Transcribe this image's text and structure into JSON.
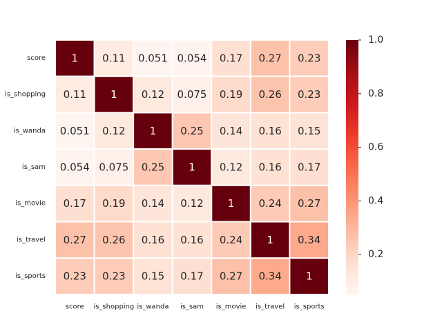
{
  "chart_data": {
    "type": "heatmap",
    "rows": [
      "score",
      "is_shopping",
      "is_wanda",
      "is_sam",
      "is_movie",
      "is_travel",
      "is_sports"
    ],
    "columns": [
      "score",
      "is_shopping",
      "is_wanda",
      "is_sam",
      "is_movie",
      "is_travel",
      "is_sports"
    ],
    "values": [
      [
        1,
        0.11,
        0.051,
        0.054,
        0.17,
        0.27,
        0.23
      ],
      [
        0.11,
        1,
        0.12,
        0.075,
        0.19,
        0.26,
        0.23
      ],
      [
        0.051,
        0.12,
        1,
        0.25,
        0.14,
        0.16,
        0.15
      ],
      [
        0.054,
        0.075,
        0.25,
        1,
        0.12,
        0.16,
        0.17
      ],
      [
        0.17,
        0.19,
        0.14,
        0.12,
        1,
        0.24,
        0.27
      ],
      [
        0.27,
        0.26,
        0.16,
        0.16,
        0.24,
        1,
        0.34
      ],
      [
        0.23,
        0.23,
        0.15,
        0.17,
        0.27,
        0.34,
        1
      ]
    ],
    "annotations": [
      [
        "1",
        "0.11",
        "0.051",
        "0.054",
        "0.17",
        "0.27",
        "0.23"
      ],
      [
        "0.11",
        "1",
        "0.12",
        "0.075",
        "0.19",
        "0.26",
        "0.23"
      ],
      [
        "0.051",
        "0.12",
        "1",
        "0.25",
        "0.14",
        "0.16",
        "0.15"
      ],
      [
        "0.054",
        "0.075",
        "0.25",
        "1",
        "0.12",
        "0.16",
        "0.17"
      ],
      [
        "0.17",
        "0.19",
        "0.14",
        "0.12",
        "1",
        "0.24",
        "0.27"
      ],
      [
        "0.27",
        "0.26",
        "0.16",
        "0.16",
        "0.24",
        "1",
        "0.34"
      ],
      [
        "0.23",
        "0.23",
        "0.15",
        "0.17",
        "0.27",
        "0.34",
        "1"
      ]
    ],
    "colormap": "Reds",
    "color_range": [
      0.051,
      1.0
    ],
    "colorbar": {
      "ticks": [
        0.2,
        0.4,
        0.6,
        0.8,
        1.0
      ],
      "tick_labels": [
        "0.2",
        "0.4",
        "0.6",
        "0.8",
        "1.0"
      ]
    },
    "title": "",
    "xlabel": "",
    "ylabel": "",
    "grid_lines_color": "#ffffff"
  }
}
